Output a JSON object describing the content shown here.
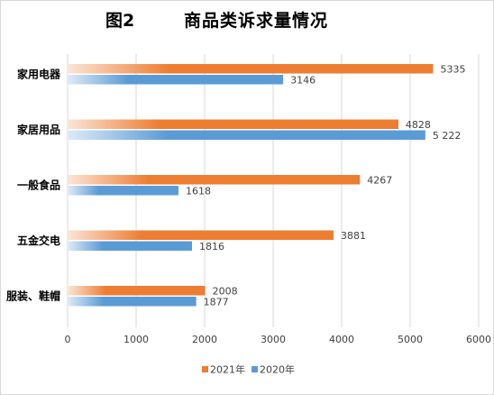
{
  "figure_label": "图2",
  "chart_data": {
    "type": "bar",
    "orientation": "horizontal",
    "title": "商品类诉求量情况",
    "categories": [
      "家用电器",
      "家居用品",
      "一般食品",
      "五金交电",
      "服装、鞋帽"
    ],
    "series": [
      {
        "name": "2021年",
        "values": [
          5335,
          4828,
          4267,
          3881,
          2008
        ],
        "labels": [
          "5335",
          "4828",
          "4267",
          "3881",
          "2008"
        ],
        "color": "#ed7d31",
        "fade": "#fbe5d6"
      },
      {
        "name": "2020年",
        "values": [
          3146,
          5222,
          1618,
          1816,
          1877
        ],
        "labels": [
          "3146",
          "5 222",
          "1618",
          "1816",
          "1877"
        ],
        "color": "#5b9bd5",
        "fade": "#deebf7"
      }
    ],
    "xlim": [
      0,
      6000
    ],
    "xticks": [
      "0",
      "1000",
      "2000",
      "3000",
      "4000",
      "5000",
      "6000"
    ],
    "grid": true,
    "legend": "bottom"
  }
}
